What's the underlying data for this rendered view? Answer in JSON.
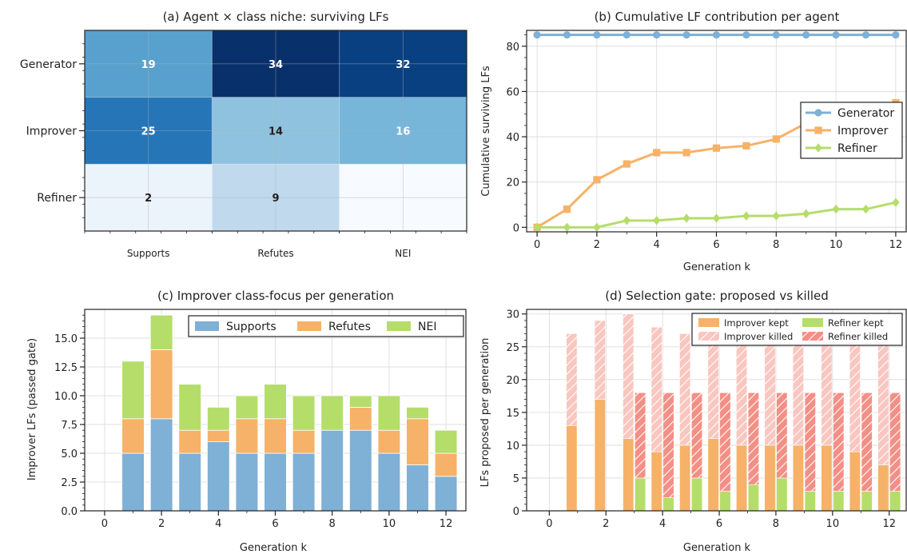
{
  "colors": {
    "generator": "#7fb0d5",
    "improver": "#f6b268",
    "refiner": "#b5dd6a",
    "supports": "#7fb0d5",
    "refutes": "#f6b268",
    "nei": "#b5dd6a",
    "improver_killed": "#f9c6c0",
    "refiner_killed": "#f48f85",
    "grid": "#d9d9d9"
  },
  "chart_data": [
    {
      "type": "heatmap",
      "title": "(a) Agent × class niche: surviving LFs",
      "rows": [
        "Generator",
        "Improver",
        "Refiner"
      ],
      "cols": [
        "Supports",
        "Refutes",
        "NEI"
      ],
      "values": [
        [
          19,
          34,
          32
        ],
        [
          25,
          14,
          16
        ],
        [
          2,
          9,
          0
        ]
      ],
      "labels": [
        [
          "19",
          "34",
          "32"
        ],
        [
          "25",
          "14",
          "16"
        ],
        [
          "2",
          "9",
          ""
        ]
      ],
      "vmin": 0,
      "vmax": 34,
      "colormap": "Blues",
      "grid": true
    },
    {
      "type": "line",
      "title": "(b) Cumulative LF contribution per agent",
      "xlabel": "Generation k",
      "ylabel": "Cumulative surviving LFs",
      "x": [
        0,
        1,
        2,
        3,
        4,
        5,
        6,
        7,
        8,
        9,
        10,
        11,
        12
      ],
      "xticks": [
        "0",
        "2",
        "4",
        "6",
        "8",
        "10",
        "12"
      ],
      "yticks": [
        "0",
        "20",
        "40",
        "60",
        "80"
      ],
      "xlim": [
        -0.35,
        12.35
      ],
      "ylim": [
        -2,
        87
      ],
      "series": [
        {
          "name": "Generator",
          "marker": "circle",
          "values": [
            85,
            85,
            85,
            85,
            85,
            85,
            85,
            85,
            85,
            85,
            85,
            85,
            85
          ]
        },
        {
          "name": "Improver",
          "marker": "square",
          "values": [
            0,
            8,
            21,
            28,
            33,
            33,
            35,
            36,
            39,
            46,
            50,
            52,
            55
          ]
        },
        {
          "name": "Refiner",
          "marker": "diamond",
          "values": [
            0,
            0,
            0,
            3,
            3,
            4,
            4,
            5,
            5,
            6,
            8,
            8,
            11
          ]
        }
      ],
      "legend": "center-right",
      "grid": true
    },
    {
      "type": "bar",
      "stacked": true,
      "title": "(c) Improver class-focus per generation",
      "xlabel": "Generation k",
      "ylabel": "Improver LFs (passed gate)",
      "x": [
        0,
        1,
        2,
        3,
        4,
        5,
        6,
        7,
        8,
        9,
        10,
        11,
        12
      ],
      "xticks": [
        "0",
        "2",
        "4",
        "6",
        "8",
        "10",
        "12"
      ],
      "yticks": [
        "0.0",
        "2.5",
        "5.0",
        "7.5",
        "10.0",
        "12.5",
        "15.0"
      ],
      "xlim": [
        -0.7,
        12.7
      ],
      "ylim": [
        0,
        17.5
      ],
      "series": [
        {
          "name": "Supports",
          "values": [
            0,
            5,
            8,
            5,
            6,
            5,
            5,
            5,
            7,
            7,
            5,
            4,
            3
          ]
        },
        {
          "name": "Refutes",
          "values": [
            0,
            3,
            6,
            2,
            1,
            3,
            3,
            2,
            0,
            2,
            2,
            4,
            2
          ]
        },
        {
          "name": "NEI",
          "values": [
            0,
            5,
            3,
            4,
            2,
            2,
            3,
            3,
            3,
            1,
            3,
            1,
            2
          ]
        }
      ],
      "legend": "top",
      "grid": true
    },
    {
      "type": "bar",
      "stacked": true,
      "grouped": true,
      "title": "(d) Selection gate: proposed vs killed",
      "xlabel": "Generation k",
      "ylabel": "LFs proposed per generation",
      "x": [
        0,
        1,
        2,
        3,
        4,
        5,
        6,
        7,
        8,
        9,
        10,
        11,
        12
      ],
      "xticks": [
        "0",
        "2",
        "4",
        "6",
        "8",
        "10",
        "12"
      ],
      "yticks": [
        "0",
        "5",
        "10",
        "15",
        "20",
        "25",
        "30"
      ],
      "xlim": [
        -0.8,
        12.6
      ],
      "ylim": [
        0,
        30.7
      ],
      "series": [
        {
          "name": "Improver kept",
          "group": "Improver",
          "values": [
            0,
            13,
            17,
            11,
            9,
            10,
            11,
            10,
            10,
            10,
            10,
            9,
            7
          ]
        },
        {
          "name": "Improver killed",
          "group": "Improver",
          "values": [
            0,
            14,
            12,
            19,
            19,
            17,
            16,
            17,
            17,
            17,
            16,
            17,
            20
          ]
        },
        {
          "name": "Refiner kept",
          "group": "Refiner",
          "values": [
            0,
            0,
            0,
            5,
            2,
            5,
            3,
            4,
            5,
            3,
            3,
            3,
            3
          ]
        },
        {
          "name": "Refiner killed",
          "group": "Refiner",
          "values": [
            0,
            0,
            0,
            13,
            16,
            13,
            15,
            14,
            13,
            15,
            15,
            15,
            15
          ]
        }
      ],
      "legend": "top-right",
      "grid": true
    }
  ]
}
